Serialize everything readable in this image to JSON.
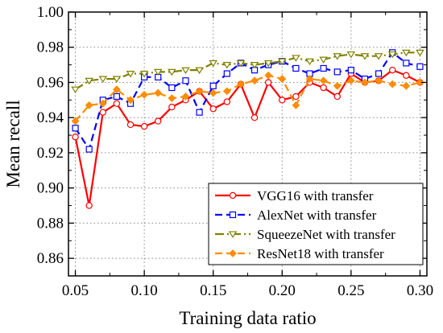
{
  "chart_data": {
    "type": "line",
    "xlabel": "Training data ratio",
    "ylabel": "Mean recall",
    "xlim": [
      0.045,
      0.305
    ],
    "ylim": [
      0.85,
      1.0
    ],
    "xticks": [
      "0.05",
      "0.10",
      "0.15",
      "0.20",
      "0.25",
      "0.30"
    ],
    "xtick_values": [
      0.05,
      0.1,
      0.15,
      0.2,
      0.25,
      0.3
    ],
    "yticks": [
      "0.86",
      "0.88",
      "0.90",
      "0.92",
      "0.94",
      "0.96",
      "0.98",
      "1.00"
    ],
    "ytick_values": [
      0.86,
      0.88,
      0.9,
      0.92,
      0.94,
      0.96,
      0.98,
      1.0
    ],
    "grid": true,
    "legend_position": "bottom-right",
    "x": [
      0.05,
      0.06,
      0.07,
      0.08,
      0.09,
      0.1,
      0.11,
      0.12,
      0.13,
      0.14,
      0.15,
      0.16,
      0.17,
      0.18,
      0.19,
      0.2,
      0.21,
      0.22,
      0.23,
      0.24,
      0.25,
      0.26,
      0.27,
      0.28,
      0.29,
      0.3
    ],
    "series": [
      {
        "name": "VGG16 with transfer",
        "color": "#ff0000",
        "dash": "solid",
        "marker": "circle",
        "values": [
          0.929,
          0.89,
          0.943,
          0.948,
          0.936,
          0.935,
          0.938,
          0.946,
          0.95,
          0.955,
          0.945,
          0.949,
          0.959,
          0.94,
          0.96,
          0.95,
          0.952,
          0.96,
          0.957,
          0.952,
          0.965,
          0.96,
          0.961,
          0.967,
          0.964,
          0.96
        ]
      },
      {
        "name": "AlexNet with transfer",
        "color": "#0000ff",
        "dash": "dashed",
        "marker": "square",
        "values": [
          0.934,
          0.922,
          0.95,
          0.952,
          0.948,
          0.963,
          0.963,
          0.957,
          0.961,
          0.943,
          0.958,
          0.965,
          0.971,
          0.967,
          0.97,
          0.972,
          0.968,
          0.965,
          0.968,
          0.966,
          0.967,
          0.962,
          0.965,
          0.977,
          0.971,
          0.969
        ]
      },
      {
        "name": "SqueezeNet with transfer",
        "color": "#808000",
        "dash": "dashdot",
        "marker": "triangle-down",
        "values": [
          0.956,
          0.961,
          0.962,
          0.962,
          0.965,
          0.965,
          0.966,
          0.966,
          0.967,
          0.967,
          0.971,
          0.97,
          0.971,
          0.97,
          0.971,
          0.972,
          0.974,
          0.972,
          0.973,
          0.975,
          0.976,
          0.975,
          0.975,
          0.976,
          0.977,
          0.977
        ]
      },
      {
        "name": "ResNet18 with transfer",
        "color": "#ff8c00",
        "dash": "dashed",
        "marker": "diamond",
        "values": [
          0.938,
          0.947,
          0.948,
          0.956,
          0.95,
          0.953,
          0.954,
          0.951,
          0.952,
          0.955,
          0.954,
          0.955,
          0.959,
          0.961,
          0.964,
          0.962,
          0.947,
          0.962,
          0.961,
          0.958,
          0.961,
          0.96,
          0.961,
          0.959,
          0.958,
          0.96
        ]
      }
    ]
  }
}
